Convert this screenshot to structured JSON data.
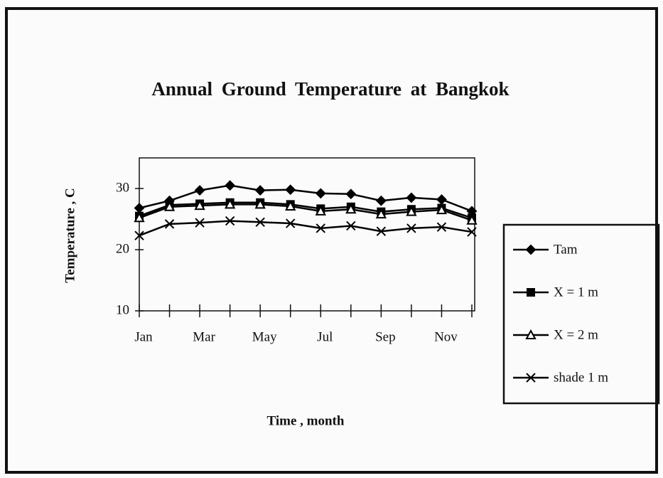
{
  "chart_data": {
    "type": "line",
    "title": "Annual Ground Temperature at Bangkok",
    "xlabel": "Time , month",
    "ylabel": "Temperature , C",
    "categories": [
      "Jan",
      null,
      "Mar",
      null,
      "May",
      null,
      "Jul",
      null,
      "Sep",
      null,
      "Nov",
      null
    ],
    "series": [
      {
        "name": "Tam",
        "color": "#000000",
        "marker": "diamond",
        "values": [
          26.8,
          28.0,
          29.7,
          30.5,
          29.7,
          29.8,
          29.2,
          29.1,
          28.0,
          28.5,
          28.2,
          26.3
        ]
      },
      {
        "name": "X = 1 m",
        "color": "#000000",
        "marker": "square",
        "values": [
          25.5,
          27.3,
          27.5,
          27.7,
          27.7,
          27.4,
          26.7,
          27.0,
          26.2,
          26.6,
          26.8,
          25.2
        ]
      },
      {
        "name": "X = 2 m",
        "color": "#000000",
        "marker": "triangle",
        "values": [
          25.2,
          27.0,
          27.2,
          27.4,
          27.4,
          27.1,
          26.3,
          26.6,
          25.8,
          26.2,
          26.5,
          24.8
        ]
      },
      {
        "name": "shade 1 m",
        "color": "#000000",
        "marker": "x",
        "values": [
          22.3,
          24.2,
          24.4,
          24.7,
          24.5,
          24.3,
          23.5,
          23.9,
          23.0,
          23.5,
          23.7,
          22.9
        ]
      }
    ],
    "ylim": [
      10,
      35
    ],
    "yticks": [
      10,
      20,
      30
    ],
    "grid": false,
    "legend": "right"
  }
}
